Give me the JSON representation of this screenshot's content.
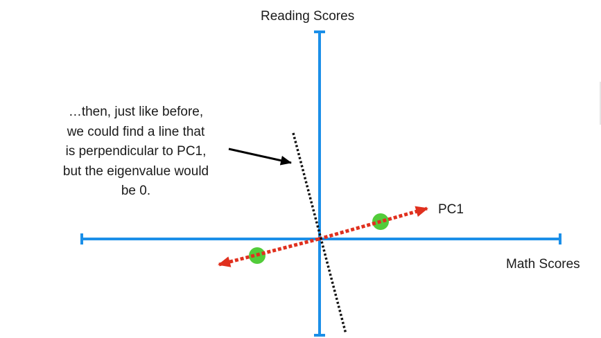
{
  "axes": {
    "x_label": "Math Scores",
    "y_label": "Reading Scores"
  },
  "pc1": {
    "label": "PC1"
  },
  "annotation": {
    "lines": [
      "…then, just like before,",
      "we could find a line that",
      "is perpendicular to PC1,",
      "but the eigenvalue would",
      "be 0."
    ]
  },
  "colors": {
    "axis": "#1b8fe8",
    "pc1_arrow": "#e0301e",
    "perpendicular_line": "#111111",
    "data_points": "#52cc3a",
    "pointer_arrow": "#000000",
    "text": "#1a1a1a"
  }
}
